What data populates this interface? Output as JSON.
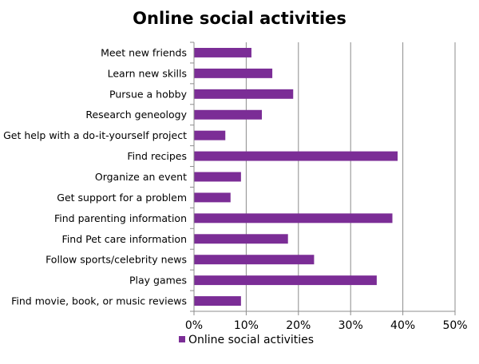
{
  "chart_data": {
    "type": "bar",
    "orientation": "horizontal",
    "title": "Online social activities",
    "categories": [
      "Meet new friends",
      "Learn new skills",
      "Pursue a hobby",
      "Research geneology",
      "Get help with a do-it-yourself project",
      "Find recipes",
      "Organize an event",
      "Get support for a problem",
      "Find parenting information",
      "Find Pet care information",
      "Follow sports/celebrity news",
      "Play games",
      "Find movie, book, or music reviews"
    ],
    "series": [
      {
        "name": "Online social activities",
        "values": [
          11,
          15,
          19,
          13,
          6,
          39,
          9,
          7,
          38,
          18,
          23,
          35,
          9
        ]
      }
    ],
    "xlim": [
      0,
      50
    ],
    "xticks": [
      0,
      10,
      20,
      30,
      40,
      50
    ],
    "xtick_labels": [
      "0%",
      "10%",
      "20%",
      "30%",
      "40%",
      "50%"
    ],
    "grid": "vertical",
    "legend": "bottom",
    "bar_color": "#7b2d96",
    "grid_color": "#8c8c8c",
    "axis_color": "#8c8c8c"
  }
}
